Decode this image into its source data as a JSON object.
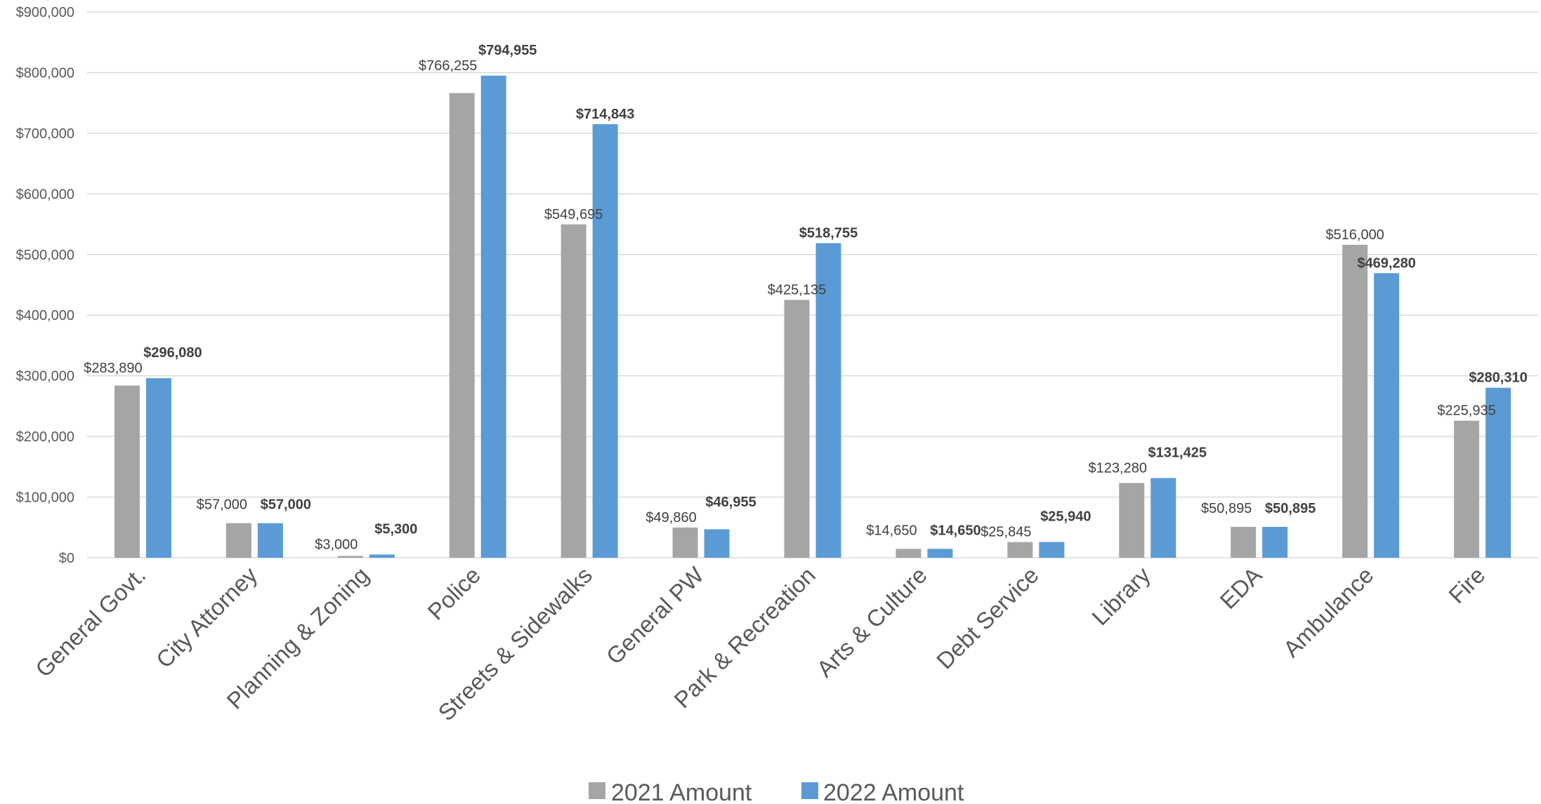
{
  "chart_data": {
    "type": "bar",
    "categories": [
      "General Govt.",
      "City Attorney",
      "Planning & Zoning",
      "Police",
      "Streets & Sidewalks",
      "General PW",
      "Park & Recreation",
      "Arts & Culture",
      "Debt Service",
      "Library",
      "EDA",
      "Ambulance",
      "Fire"
    ],
    "series": [
      {
        "name": "2021 Amount",
        "color": "#a5a5a5",
        "values": [
          283890,
          57000,
          3000,
          766255,
          549695,
          49860,
          425135,
          14650,
          25845,
          123280,
          50895,
          516000,
          225935
        ],
        "labels": [
          "$283,890",
          "$57,000",
          "$3,000",
          "$766,255",
          "$549,695",
          "$49,860",
          "$425,135",
          "$14,650",
          "$25,845",
          "$123,280",
          "$50,895",
          "$516,000",
          "$225,935"
        ]
      },
      {
        "name": "2022 Amount",
        "color": "#5b9bd5",
        "values": [
          296080,
          57000,
          5300,
          794955,
          714843,
          46955,
          518755,
          14650,
          25940,
          131425,
          50895,
          469280,
          280310
        ],
        "labels": [
          "$296,080",
          "$57,000",
          "$5,300",
          "$794,955",
          "$714,843",
          "$46,955",
          "$518,755",
          "$14,650",
          "$25,940",
          "$131,425",
          "$50,895",
          "$469,280",
          "$280,310"
        ]
      }
    ],
    "ylim": [
      0,
      900000
    ],
    "yticks": [
      0,
      100000,
      200000,
      300000,
      400000,
      500000,
      600000,
      700000,
      800000,
      900000
    ],
    "ytick_labels": [
      "$0",
      "$100,000",
      "$200,000",
      "$300,000",
      "$400,000",
      "$500,000",
      "$600,000",
      "$700,000",
      "$800,000",
      "$900,000"
    ],
    "title": "",
    "xlabel": "",
    "ylabel": "",
    "grid": true,
    "legend_position": "bottom"
  }
}
